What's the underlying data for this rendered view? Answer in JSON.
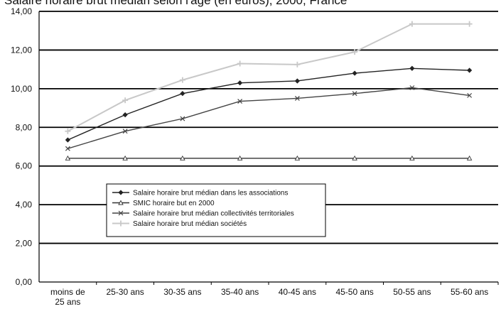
{
  "chart_data": {
    "type": "line",
    "title": "Salaire horaire brut médian selon l'âge (en euros), 2000, France",
    "xlabel": "",
    "ylabel": "",
    "categories": [
      "moins de 25 ans",
      "25-30 ans",
      "30-35 ans",
      "35-40 ans",
      "40-45 ans",
      "45-50 ans",
      "50-55 ans",
      "55-60 ans"
    ],
    "y_tick_labels": [
      "0,00",
      "2,00",
      "4,00",
      "6,00",
      "8,00",
      "10,00",
      "12,00",
      "14,00"
    ],
    "ylim": [
      0,
      14
    ],
    "grid": "horizontal",
    "legend_position": "center-left",
    "series": [
      {
        "name": "Salaire horaire brut médian dans les associations",
        "marker": "diamond",
        "color": "#222222",
        "values": [
          7.35,
          8.65,
          9.75,
          10.3,
          10.4,
          10.8,
          11.05,
          10.95
        ]
      },
      {
        "name": "SMIC horaire but en 2000",
        "marker": "triangle",
        "color": "#333333",
        "values": [
          6.4,
          6.4,
          6.4,
          6.4,
          6.4,
          6.4,
          6.4,
          6.4
        ]
      },
      {
        "name": "Salaire horaire brut médian collectivités territoriales",
        "marker": "x",
        "color": "#444444",
        "values": [
          6.9,
          7.8,
          8.45,
          9.35,
          9.5,
          9.75,
          10.05,
          9.65
        ]
      },
      {
        "name": "Salaire horaire brut médian sociétés",
        "marker": "plus",
        "color": "#c8c8c8",
        "values": [
          7.8,
          9.4,
          10.45,
          11.3,
          11.25,
          11.9,
          13.35,
          13.35
        ]
      }
    ]
  }
}
